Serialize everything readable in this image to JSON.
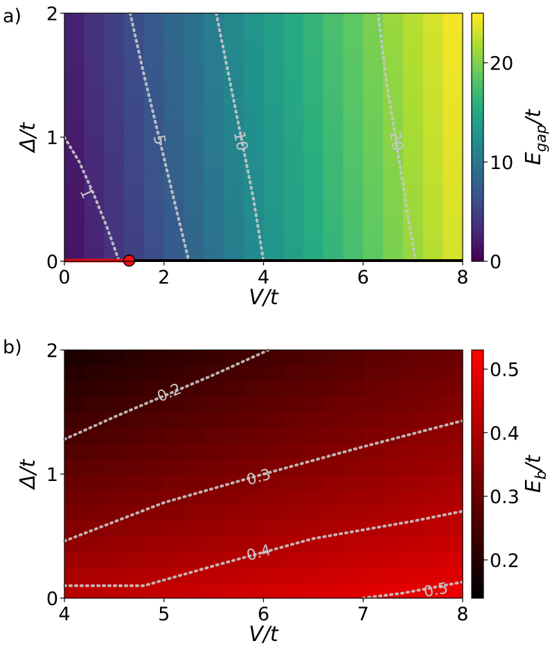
{
  "chart_data": [
    {
      "panel_label": "a)",
      "type": "heatmap",
      "xlabel": "V/t",
      "ylabel": "Δ/t",
      "xlim": [
        0,
        8
      ],
      "ylim": [
        0,
        2
      ],
      "xticks": [
        "0",
        "2",
        "4",
        "6",
        "8"
      ],
      "xtick_values": [
        0,
        2,
        4,
        6,
        8
      ],
      "yticks": [
        "0",
        "1",
        "2"
      ],
      "ytick_values": [
        0,
        1,
        2
      ],
      "colorbar": {
        "label": "E_gap/t",
        "colormap": "viridis",
        "range": [
          0,
          25
        ],
        "ticks": [
          "0",
          "10",
          "20"
        ],
        "tick_values": [
          0,
          10,
          20
        ]
      },
      "grid_columns": 20,
      "grid_rows": 16,
      "contours": [
        {
          "level": "1",
          "points": [
            [
              0,
              1.0
            ],
            [
              0.3,
              0.8
            ],
            [
              0.6,
              0.53
            ],
            [
              0.85,
              0.28
            ],
            [
              1.1,
              0.0
            ]
          ],
          "label_at": [
            0.45,
            0.55
          ]
        },
        {
          "level": "5",
          "points": [
            [
              1.32,
              2.0
            ],
            [
              1.6,
              1.5
            ],
            [
              1.9,
              1.0
            ],
            [
              2.2,
              0.5
            ],
            [
              2.5,
              0.0
            ]
          ],
          "label_at": [
            1.92,
            0.98
          ]
        },
        {
          "level": "10",
          "points": [
            [
              3.05,
              2.0
            ],
            [
              3.3,
              1.5
            ],
            [
              3.55,
              1.0
            ],
            [
              3.8,
              0.5
            ],
            [
              4.0,
              0.0
            ]
          ],
          "label_at": [
            3.55,
            0.97
          ]
        },
        {
          "level": "20",
          "points": [
            [
              6.3,
              2.0
            ],
            [
              6.45,
              1.5
            ],
            [
              6.65,
              1.0
            ],
            [
              6.85,
              0.5
            ],
            [
              7.05,
              0.0
            ]
          ],
          "label_at": [
            6.68,
            0.97
          ]
        }
      ],
      "baseline": {
        "red_segment": [
          0,
          1.3
        ],
        "black_segment": [
          1.3,
          8
        ],
        "marker_x": 1.3
      }
    },
    {
      "panel_label": "b)",
      "type": "heatmap",
      "xlabel": "V/t",
      "ylabel": "Δ/t",
      "xlim": [
        4,
        8
      ],
      "ylim": [
        0,
        2
      ],
      "xticks": [
        "4",
        "5",
        "6",
        "7",
        "8"
      ],
      "xtick_values": [
        4,
        5,
        6,
        7,
        8
      ],
      "yticks": [
        "0",
        "1",
        "2"
      ],
      "ytick_values": [
        0,
        1,
        2
      ],
      "colorbar": {
        "label": "E_b/t",
        "colormap": "black-red",
        "range": [
          0.14,
          0.53
        ],
        "ticks": [
          "0.2",
          "0.3",
          "0.4",
          "0.5"
        ],
        "tick_values": [
          0.2,
          0.3,
          0.4,
          0.5
        ]
      },
      "grid_columns": 20,
      "grid_rows": 16,
      "contours": [
        {
          "level": "0.2",
          "points": [
            [
              4.0,
              1.28
            ],
            [
              4.5,
              1.46
            ],
            [
              5.0,
              1.63
            ],
            [
              5.5,
              1.8
            ],
            [
              6.05,
              2.0
            ]
          ],
          "label_at": [
            5.05,
            1.66
          ]
        },
        {
          "level": "0.3",
          "points": [
            [
              4.0,
              0.46
            ],
            [
              5.0,
              0.77
            ],
            [
              6.0,
              1.0
            ],
            [
              7.0,
              1.22
            ],
            [
              8.0,
              1.43
            ]
          ],
          "label_at": [
            5.95,
            0.98
          ]
        },
        {
          "level": "0.4",
          "points": [
            [
              4.0,
              0.1
            ],
            [
              4.8,
              0.1
            ],
            [
              5.5,
              0.26
            ],
            [
              6.5,
              0.48
            ],
            [
              7.5,
              0.62
            ],
            [
              8.0,
              0.7
            ]
          ],
          "label_at": [
            5.95,
            0.37
          ]
        },
        {
          "level": "0.5",
          "points": [
            [
              7.0,
              0.0
            ],
            [
              7.4,
              0.04
            ],
            [
              7.8,
              0.1
            ],
            [
              8.0,
              0.13
            ]
          ],
          "label_at": [
            7.73,
            0.07
          ]
        }
      ]
    }
  ]
}
